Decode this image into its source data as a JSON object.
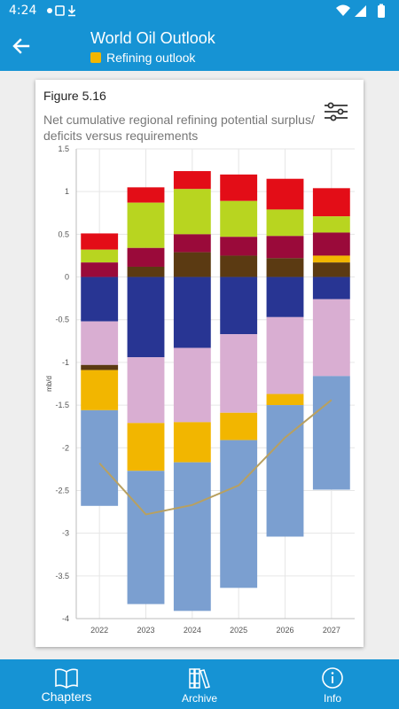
{
  "status_bar": {
    "time": "4:24"
  },
  "app_bar": {
    "title": "World Oil Outlook",
    "subtitle": "Refining outlook",
    "subtitle_color": "#f2b600"
  },
  "figure": {
    "label": "Figure 5.16",
    "subtitle": "Net cumulative regional refining potential surplus/ deficits versus requirements"
  },
  "chart_data": {
    "type": "bar",
    "stacked": true,
    "categories": [
      "2022",
      "2023",
      "2024",
      "2025",
      "2026",
      "2027"
    ],
    "ylabel": "mb/d",
    "ylim": [
      -4,
      1.5
    ],
    "yticks": [
      "1.5",
      "1",
      "0.5",
      "0",
      "-0.5",
      "-1",
      "-1.5",
      "-2",
      "-2.5",
      "-3",
      "-3.5",
      "-4"
    ],
    "grid": true,
    "bars": [
      {
        "category": "2022",
        "segments": [
          {
            "from": 0.32,
            "to": 0.51,
            "color": "#e30d17"
          },
          {
            "from": 0.17,
            "to": 0.32,
            "color": "#b8d520"
          },
          {
            "from": 0.0,
            "to": 0.17,
            "color": "#9a0a3a"
          },
          {
            "from": -0.52,
            "to": 0.0,
            "color": "#283593"
          },
          {
            "from": -1.03,
            "to": -0.52,
            "color": "#d9aed2"
          },
          {
            "from": -1.09,
            "to": -1.03,
            "color": "#5b3a12"
          },
          {
            "from": -1.56,
            "to": -1.09,
            "color": "#f2b600"
          },
          {
            "from": -2.68,
            "to": -1.56,
            "color": "#7b9fd0"
          }
        ]
      },
      {
        "category": "2023",
        "segments": [
          {
            "from": 0.87,
            "to": 1.05,
            "color": "#e30d17"
          },
          {
            "from": 0.34,
            "to": 0.87,
            "color": "#b8d520"
          },
          {
            "from": 0.12,
            "to": 0.34,
            "color": "#9a0a3a"
          },
          {
            "from": 0.0,
            "to": 0.12,
            "color": "#5b3a12"
          },
          {
            "from": -0.94,
            "to": 0.0,
            "color": "#283593"
          },
          {
            "from": -1.71,
            "to": -0.94,
            "color": "#d9aed2"
          },
          {
            "from": -2.27,
            "to": -1.71,
            "color": "#f2b600"
          },
          {
            "from": -3.83,
            "to": -2.27,
            "color": "#7b9fd0"
          }
        ]
      },
      {
        "category": "2024",
        "segments": [
          {
            "from": 1.03,
            "to": 1.24,
            "color": "#e30d17"
          },
          {
            "from": 0.5,
            "to": 1.03,
            "color": "#b8d520"
          },
          {
            "from": 0.29,
            "to": 0.5,
            "color": "#9a0a3a"
          },
          {
            "from": 0.0,
            "to": 0.29,
            "color": "#5b3a12"
          },
          {
            "from": -0.83,
            "to": 0.0,
            "color": "#283593"
          },
          {
            "from": -1.7,
            "to": -0.83,
            "color": "#d9aed2"
          },
          {
            "from": -2.17,
            "to": -1.7,
            "color": "#f2b600"
          },
          {
            "from": -3.91,
            "to": -2.17,
            "color": "#7b9fd0"
          }
        ]
      },
      {
        "category": "2025",
        "segments": [
          {
            "from": 0.89,
            "to": 1.2,
            "color": "#e30d17"
          },
          {
            "from": 0.47,
            "to": 0.89,
            "color": "#b8d520"
          },
          {
            "from": 0.25,
            "to": 0.47,
            "color": "#9a0a3a"
          },
          {
            "from": 0.0,
            "to": 0.25,
            "color": "#5b3a12"
          },
          {
            "from": -0.67,
            "to": 0.0,
            "color": "#283593"
          },
          {
            "from": -1.59,
            "to": -0.67,
            "color": "#d9aed2"
          },
          {
            "from": -1.91,
            "to": -1.59,
            "color": "#f2b600"
          },
          {
            "from": -3.64,
            "to": -1.91,
            "color": "#7b9fd0"
          }
        ]
      },
      {
        "category": "2026",
        "segments": [
          {
            "from": 0.79,
            "to": 1.15,
            "color": "#e30d17"
          },
          {
            "from": 0.48,
            "to": 0.79,
            "color": "#b8d520"
          },
          {
            "from": 0.22,
            "to": 0.48,
            "color": "#9a0a3a"
          },
          {
            "from": 0.0,
            "to": 0.22,
            "color": "#5b3a12"
          },
          {
            "from": -0.47,
            "to": 0.0,
            "color": "#283593"
          },
          {
            "from": -1.37,
            "to": -0.47,
            "color": "#d9aed2"
          },
          {
            "from": -1.5,
            "to": -1.37,
            "color": "#f2b600"
          },
          {
            "from": -3.04,
            "to": -1.5,
            "color": "#7b9fd0"
          }
        ]
      },
      {
        "category": "2027",
        "segments": [
          {
            "from": 0.71,
            "to": 1.04,
            "color": "#e30d17"
          },
          {
            "from": 0.52,
            "to": 0.71,
            "color": "#b8d520"
          },
          {
            "from": 0.25,
            "to": 0.52,
            "color": "#9a0a3a"
          },
          {
            "from": 0.17,
            "to": 0.25,
            "color": "#f2b600"
          },
          {
            "from": 0.0,
            "to": 0.17,
            "color": "#5b3a12"
          },
          {
            "from": -0.26,
            "to": 0.0,
            "color": "#283593"
          },
          {
            "from": -1.16,
            "to": -0.26,
            "color": "#d9aed2"
          },
          {
            "from": -2.49,
            "to": -1.16,
            "color": "#7b9fd0"
          }
        ]
      }
    ],
    "line": {
      "values": [
        -2.18,
        -2.78,
        -2.67,
        -2.44,
        -1.88,
        -1.44
      ],
      "color": "#b8a060"
    }
  },
  "tabs": [
    {
      "label": "Chapters",
      "icon": "book-icon"
    },
    {
      "label": "Archive",
      "icon": "archive-books-icon"
    },
    {
      "label": "Info",
      "icon": "info-icon"
    }
  ]
}
